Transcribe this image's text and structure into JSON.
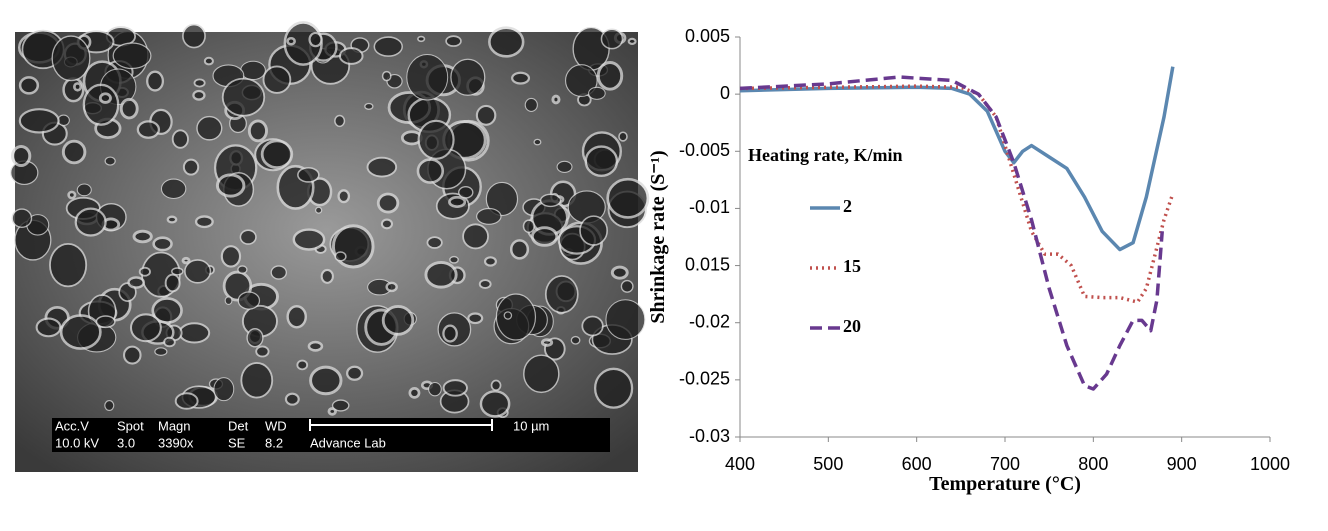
{
  "image": {
    "info_row1": [
      "Acc.V",
      "Spot",
      "Magn",
      "Det",
      "WD"
    ],
    "info_row2": [
      "10.0 kV",
      "3.0",
      "3390x",
      "SE",
      "8.2",
      "Advance Lab"
    ],
    "scale_label": "10 µm"
  },
  "chart_data": {
    "type": "line",
    "x_label": "Temperature (°C)",
    "y_label": "Shrinkage rate (S⁻¹)",
    "legend_title": "Heating rate, K/min",
    "xlim": [
      400,
      1000
    ],
    "xticks": [
      400,
      500,
      600,
      700,
      800,
      900,
      1000
    ],
    "ylim": [
      -0.03,
      0.005
    ],
    "yticks": [
      0.005,
      0,
      -0.005,
      -0.01,
      {
        "value": -0.015,
        "label": "0.015"
      },
      -0.02,
      -0.025,
      -0.03
    ],
    "grid": false,
    "series": [
      {
        "name": "2",
        "color": "#5b87b0",
        "linestyle": "solid",
        "x": [
          400,
          500,
          600,
          640,
          660,
          680,
          700,
          710,
          720,
          730,
          750,
          770,
          790,
          810,
          830,
          845,
          860,
          880,
          890
        ],
        "values": [
          0.0003,
          0.0005,
          0.0006,
          0.0005,
          0,
          -0.0015,
          -0.005,
          -0.006,
          -0.005,
          -0.0045,
          -0.0055,
          -0.0065,
          -0.009,
          -0.012,
          -0.0136,
          -0.013,
          -0.009,
          -0.002,
          0.0024
        ]
      },
      {
        "name": "15",
        "color": "#c0504d",
        "linestyle": "dotted",
        "x": [
          400,
          500,
          600,
          650,
          670,
          690,
          710,
          730,
          745,
          760,
          775,
          790,
          810,
          830,
          850,
          860,
          870,
          880,
          890
        ],
        "values": [
          0.0005,
          0.0006,
          0.0007,
          0.0006,
          0,
          -0.002,
          -0.007,
          -0.012,
          -0.014,
          -0.014,
          -0.015,
          -0.0177,
          -0.0178,
          -0.0178,
          -0.0182,
          -0.017,
          -0.014,
          -0.011,
          -0.0087
        ]
      },
      {
        "name": "20",
        "color": "#68398f",
        "linestyle": "dashed",
        "x": [
          400,
          500,
          580,
          640,
          670,
          690,
          710,
          730,
          750,
          770,
          790,
          800,
          815,
          830,
          845,
          855,
          865,
          872,
          878
        ],
        "values": [
          0.0005,
          0.0009,
          0.0015,
          0.0012,
          0,
          -0.002,
          -0.006,
          -0.011,
          -0.017,
          -0.022,
          -0.0255,
          -0.0258,
          -0.0245,
          -0.022,
          -0.0198,
          -0.0198,
          -0.0207,
          -0.018,
          -0.012
        ]
      }
    ]
  }
}
